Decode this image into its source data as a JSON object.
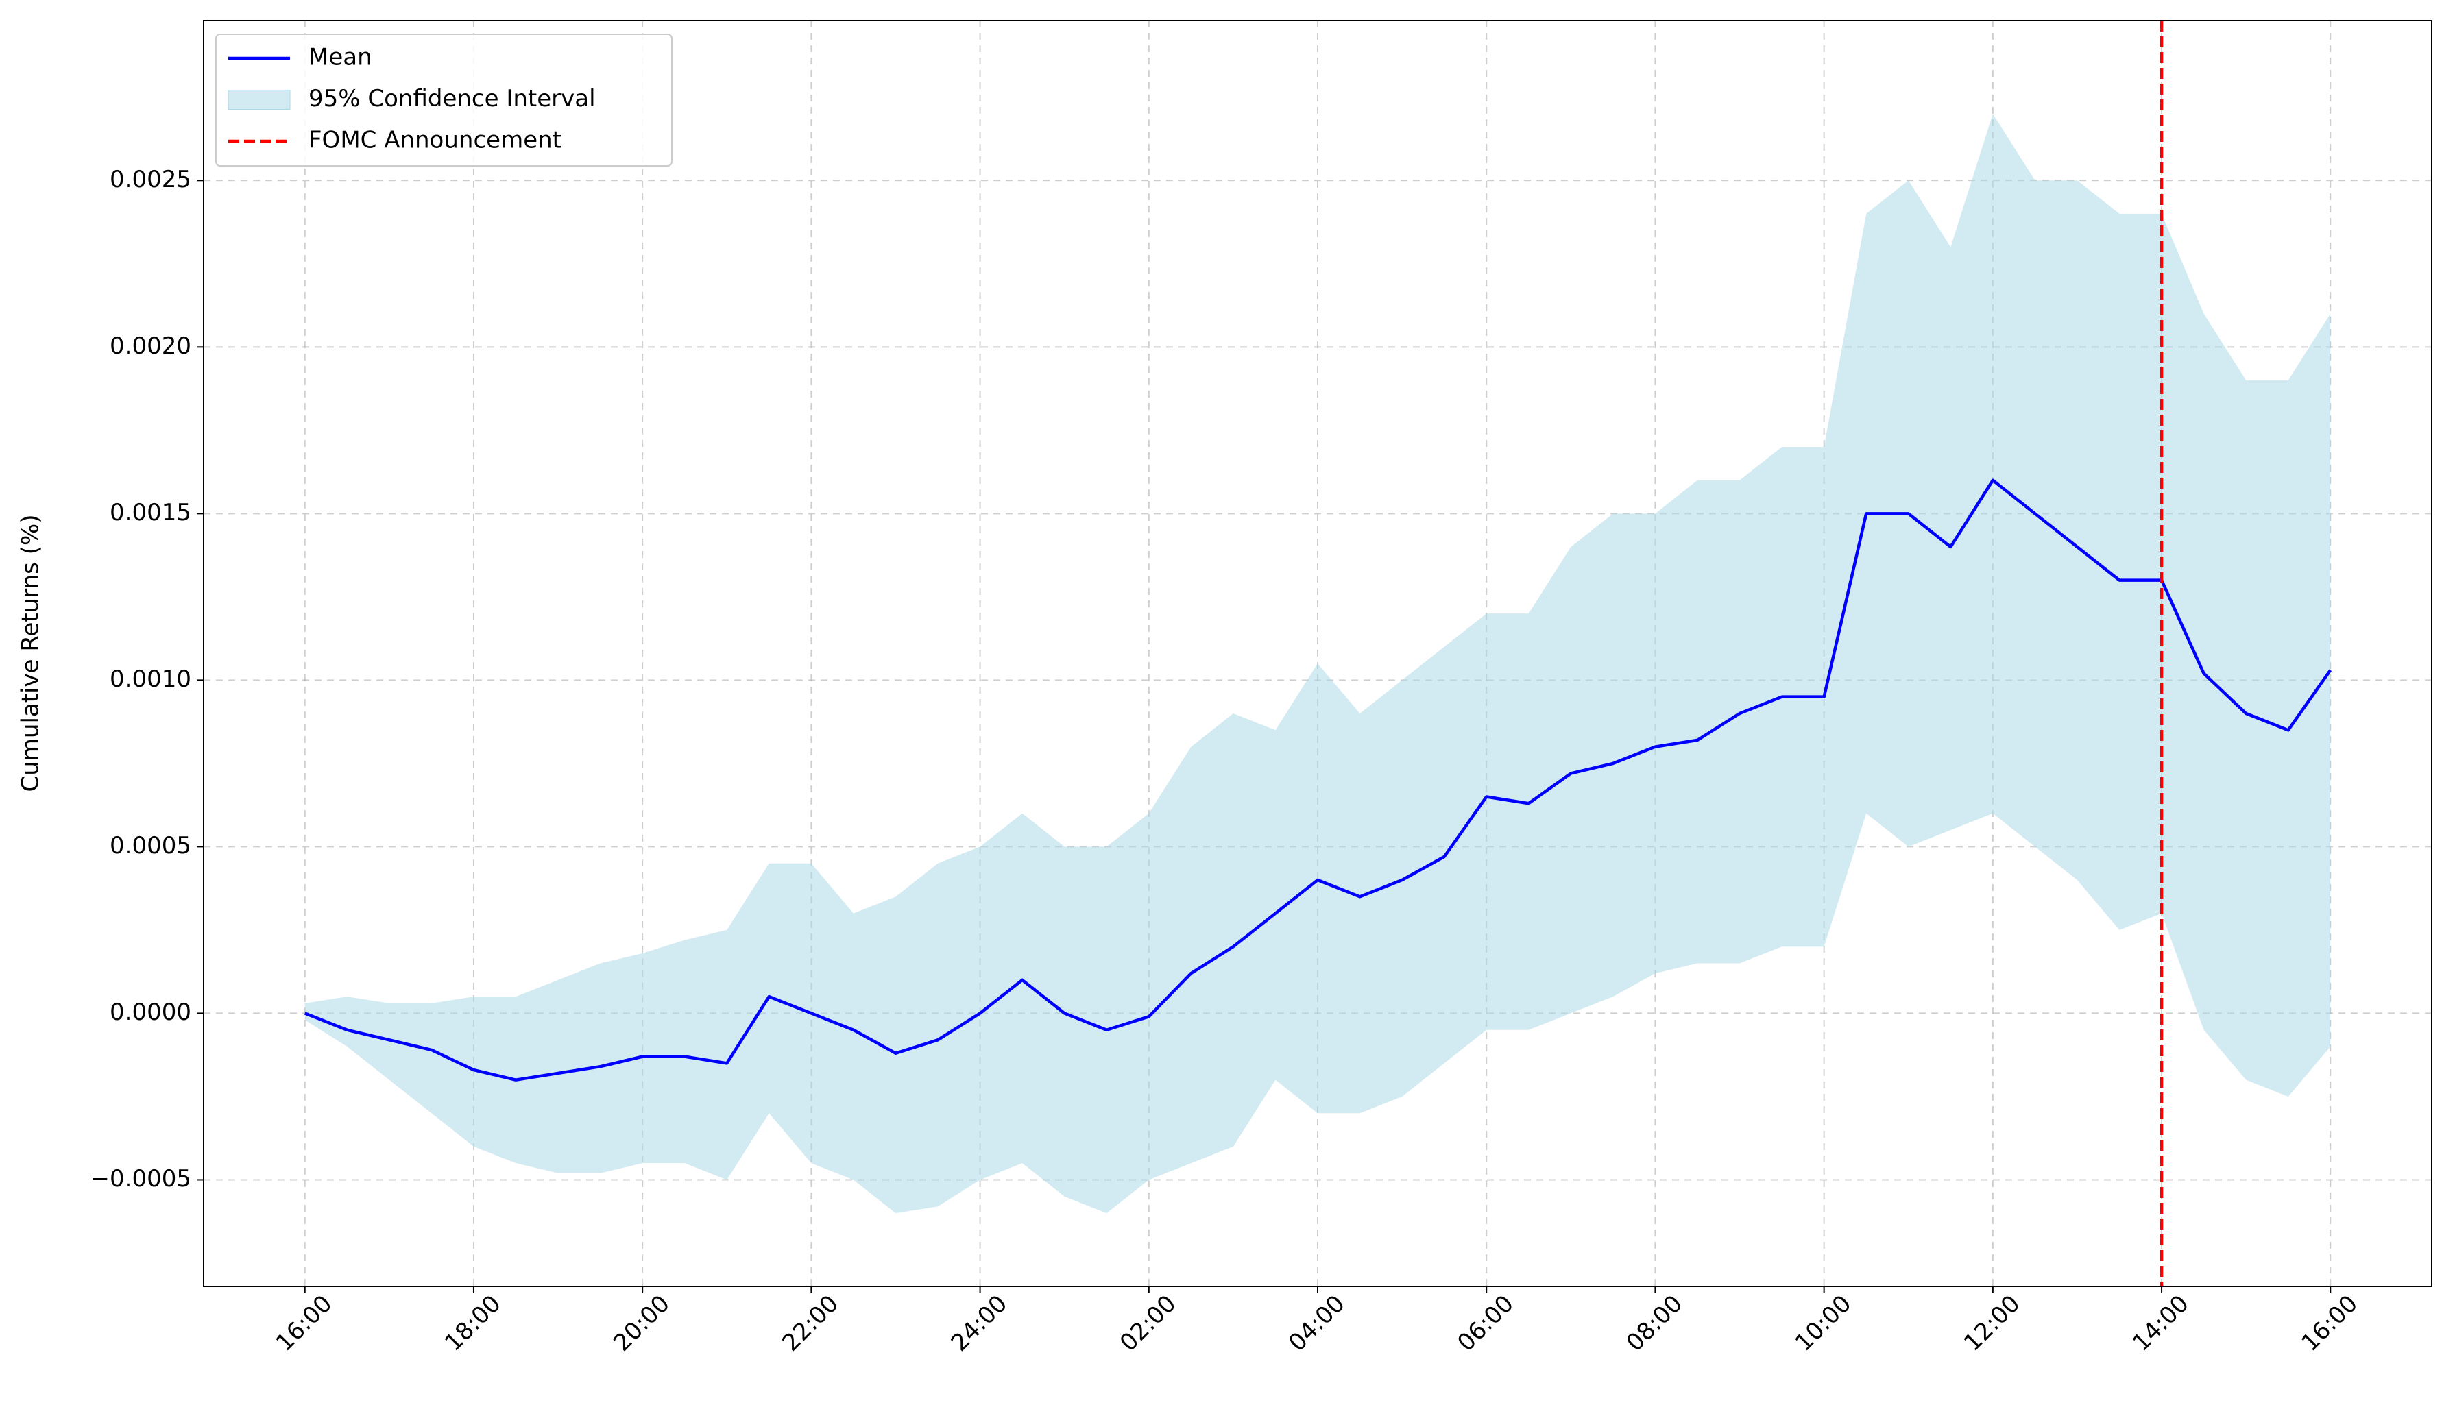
{
  "chart_data": {
    "type": "line",
    "ylabel": "Cumulative Returns (%)",
    "x": [
      0,
      0.5,
      1,
      1.5,
      2,
      2.5,
      3,
      3.5,
      4,
      4.5,
      5,
      5.5,
      6,
      6.5,
      7,
      7.5,
      8,
      8.5,
      9,
      9.5,
      10,
      10.5,
      11,
      11.5,
      12,
      12.5,
      13,
      13.5,
      14,
      14.5,
      15,
      15.5,
      16,
      16.5,
      17,
      17.5,
      18,
      18.5,
      19,
      19.5,
      20,
      20.5,
      21,
      21.5,
      22,
      22.5,
      23,
      23.5,
      24
    ],
    "series": [
      {
        "name": "Mean",
        "color": "#0000ff",
        "values": [
          0,
          -5e-05,
          -8e-05,
          -0.00011,
          -0.00017,
          -0.0002,
          -0.00018,
          -0.00016,
          -0.00013,
          -0.00013,
          -0.00015,
          5e-05,
          0,
          -5e-05,
          -0.00012,
          -8e-05,
          0,
          0.0001,
          0,
          -5e-05,
          -1e-05,
          0.00012,
          0.0002,
          0.0003,
          0.0004,
          0.00035,
          0.0004,
          0.00047,
          0.00065,
          0.00063,
          0.00072,
          0.00075,
          0.0008,
          0.00082,
          0.0009,
          0.00095,
          0.00095,
          0.0015,
          0.0015,
          0.0014,
          0.0016,
          0.0015,
          0.0014,
          0.0013,
          0.0013,
          0.00102,
          0.0009,
          0.00085,
          0.00103
        ]
      },
      {
        "name": "95% Confidence Interval",
        "type": "band",
        "color": "#add8e6",
        "upper": [
          3e-05,
          5e-05,
          3e-05,
          3e-05,
          5e-05,
          5e-05,
          0.0001,
          0.00015,
          0.00018,
          0.00022,
          0.00025,
          0.00045,
          0.00045,
          0.0003,
          0.00035,
          0.00045,
          0.0005,
          0.0006,
          0.0005,
          0.0005,
          0.0006,
          0.0008,
          0.0009,
          0.00085,
          0.00105,
          0.0009,
          0.001,
          0.0011,
          0.0012,
          0.0012,
          0.0014,
          0.0015,
          0.0015,
          0.0016,
          0.0016,
          0.0017,
          0.0017,
          0.0024,
          0.0025,
          0.0023,
          0.0027,
          0.0025,
          0.0025,
          0.0024,
          0.0024,
          0.0021,
          0.0019,
          0.0019,
          0.0021
        ],
        "lower": [
          -2e-05,
          -0.0001,
          -0.0002,
          -0.0003,
          -0.0004,
          -0.00045,
          -0.00048,
          -0.00048,
          -0.00045,
          -0.00045,
          -0.0005,
          -0.0003,
          -0.00045,
          -0.0005,
          -0.0006,
          -0.00058,
          -0.0005,
          -0.00045,
          -0.00055,
          -0.0006,
          -0.0005,
          -0.00045,
          -0.0004,
          -0.0002,
          -0.0003,
          -0.0003,
          -0.00025,
          -0.00015,
          -5e-05,
          -5e-05,
          0,
          5e-05,
          0.00012,
          0.00015,
          0.00015,
          0.0002,
          0.0002,
          0.0006,
          0.0005,
          0.00055,
          0.0006,
          0.0005,
          0.0004,
          0.00025,
          0.0003,
          -5e-05,
          -0.0002,
          -0.00025,
          -0.0001
        ]
      }
    ],
    "vlines": [
      {
        "name": "FOMC Announcement",
        "x": 22,
        "color": "#ff0000"
      }
    ],
    "xlim": [
      -1.2,
      25.2
    ],
    "xticks": [
      {
        "value": 0,
        "label": "16:00"
      },
      {
        "value": 2,
        "label": "18:00"
      },
      {
        "value": 4,
        "label": "20:00"
      },
      {
        "value": 6,
        "label": "22:00"
      },
      {
        "value": 8,
        "label": "24:00"
      },
      {
        "value": 10,
        "label": "02:00"
      },
      {
        "value": 12,
        "label": "04:00"
      },
      {
        "value": 14,
        "label": "06:00"
      },
      {
        "value": 16,
        "label": "08:00"
      },
      {
        "value": 18,
        "label": "10:00"
      },
      {
        "value": 20,
        "label": "12:00"
      },
      {
        "value": 22,
        "label": "14:00"
      },
      {
        "value": 24,
        "label": "16:00"
      }
    ],
    "ylim": [
      -0.00082,
      0.00298
    ],
    "yticks": [
      {
        "value": -0.0005,
        "label": "−0.0005"
      },
      {
        "value": 0,
        "label": "0.0000"
      },
      0.0005,
      {
        "value": 0.001,
        "label": "0.0010"
      },
      0.0015,
      {
        "value": 0.002,
        "label": "0.0020"
      },
      0.0025
    ],
    "grid": true,
    "legend": "upper left"
  }
}
